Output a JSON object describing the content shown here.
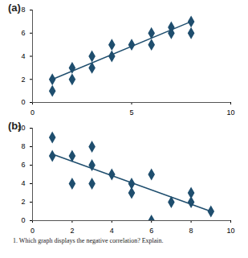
{
  "chart_data": [
    {
      "type": "scatter",
      "title": "(a)",
      "color": "#1f4e6e",
      "marker": "diamond",
      "x": [
        1,
        1,
        2,
        2,
        3,
        3,
        4,
        4,
        5,
        6,
        6,
        7,
        7,
        8,
        8
      ],
      "values": [
        1,
        2,
        2,
        3,
        3,
        4,
        4,
        5,
        5,
        5,
        6,
        6.5,
        6,
        6,
        7
      ],
      "trend_line": {
        "x": [
          1,
          8
        ],
        "y": [
          2,
          7
        ]
      },
      "xlim": [
        0,
        10
      ],
      "xticks": [
        0,
        5,
        10
      ],
      "ylim": [
        0,
        8
      ],
      "yticks": [
        0,
        2,
        4,
        6,
        8
      ],
      "grid": false
    },
    {
      "type": "scatter",
      "title": "(b)",
      "color": "#1f4e6e",
      "marker": "diamond",
      "x": [
        1,
        1,
        2,
        2,
        3,
        3,
        3,
        4,
        5,
        5,
        6,
        6,
        7,
        8,
        8,
        9
      ],
      "values": [
        9,
        7,
        7,
        4,
        8,
        6,
        4,
        5,
        4,
        3,
        5,
        0,
        2,
        3,
        2,
        1
      ],
      "trend_line": {
        "x": [
          1,
          9
        ],
        "y": [
          7.2,
          1
        ]
      },
      "xlim": [
        0,
        10
      ],
      "xticks": [
        0,
        2,
        4,
        6,
        8,
        10
      ],
      "ylim": [
        0,
        10
      ],
      "yticks": [
        0,
        2,
        4,
        6,
        8,
        10
      ],
      "grid": false
    }
  ],
  "caption": "1. Which graph displays the negative correlation? Explain."
}
